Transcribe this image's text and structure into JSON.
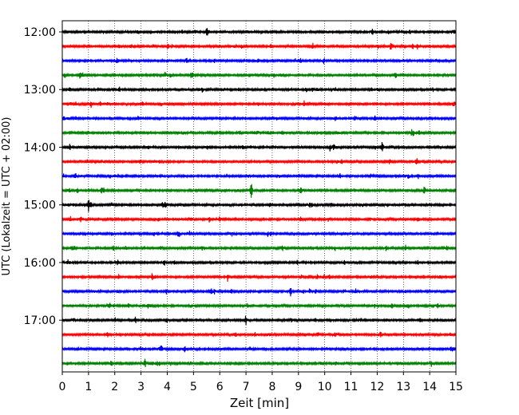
{
  "chart_data": {
    "type": "line",
    "title": "",
    "xlabel": "Zeit  [min]",
    "ylabel": "UTC (Lokalzeit = UTC + 02:00)",
    "xlim": [
      0,
      15
    ],
    "x_ticks": [
      "0",
      "1",
      "2",
      "3",
      "4",
      "5",
      "6",
      "7",
      "8",
      "9",
      "10",
      "11",
      "12",
      "13",
      "14",
      "15"
    ],
    "y_ticks": [
      "12:00",
      "13:00",
      "14:00",
      "15:00",
      "16:00",
      "17:00"
    ],
    "grid": "vertical dotted",
    "trace_interval_min": 15,
    "trace_count": 24,
    "trace_colors": [
      "#000000",
      "#ff0000",
      "#0000ff",
      "#008000"
    ],
    "events": [
      {
        "trace": 8,
        "minute": 12.2,
        "amplitude": 9
      },
      {
        "trace": 9,
        "minute": 13.5,
        "amplitude": 6
      },
      {
        "trace": 11,
        "minute": 7.2,
        "amplitude": 12
      },
      {
        "trace": 11,
        "minute": 9.1,
        "amplitude": 6
      },
      {
        "trace": 12,
        "minute": 1.0,
        "amplitude": 8
      },
      {
        "trace": 8,
        "minute": 10.2,
        "amplitude": 5
      },
      {
        "trace": 21,
        "minute": 10.4,
        "amplitude": 4
      },
      {
        "trace": 18,
        "minute": 8.7,
        "amplitude": 5
      },
      {
        "trace": 3,
        "minute": 12.7,
        "amplitude": 5
      },
      {
        "trace": 17,
        "minute": 6.3,
        "amplitude": 5
      },
      {
        "trace": 5,
        "minute": 1.1,
        "amplitude": 4
      },
      {
        "trace": 16,
        "minute": 2.1,
        "amplitude": 4
      }
    ]
  }
}
